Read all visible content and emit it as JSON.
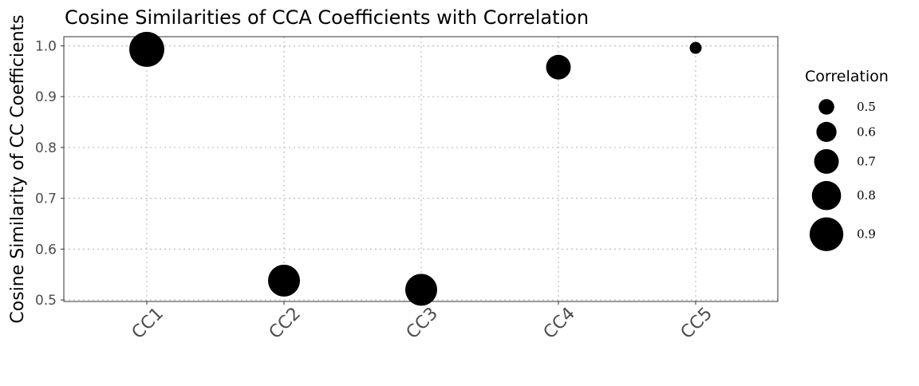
{
  "chart_data": {
    "type": "scatter",
    "title": "Cosine Similarities of CCA Coefficients with Correlation",
    "xlabel": "",
    "ylabel": "Cosine Similarity of CC Coefficients",
    "categories": [
      "CC1",
      "CC2",
      "CC3",
      "CC4",
      "CC5"
    ],
    "y_values": [
      0.993,
      0.538,
      0.52,
      0.958,
      0.996
    ],
    "correlation": [
      0.93,
      0.86,
      0.86,
      0.7,
      0.42
    ],
    "ylim": [
      0.497,
      1.018
    ],
    "yticks": [
      0.5,
      0.6,
      0.7,
      0.8,
      0.9,
      1.0
    ],
    "ytick_labels": [
      "0.5",
      "0.6",
      "0.7",
      "0.8",
      "0.9",
      "1.0"
    ],
    "size_scale": {
      "min_value": 0.42,
      "max_value": 0.93
    },
    "legend": {
      "title": "Correlation",
      "placement": "right",
      "entries": [
        {
          "value": 0.5,
          "label": "0.5"
        },
        {
          "value": 0.6,
          "label": "0.6"
        },
        {
          "value": 0.7,
          "label": "0.7"
        },
        {
          "value": 0.8,
          "label": "0.8"
        },
        {
          "value": 0.9,
          "label": "0.9"
        }
      ]
    },
    "grid": true,
    "point_color": "#000000"
  }
}
